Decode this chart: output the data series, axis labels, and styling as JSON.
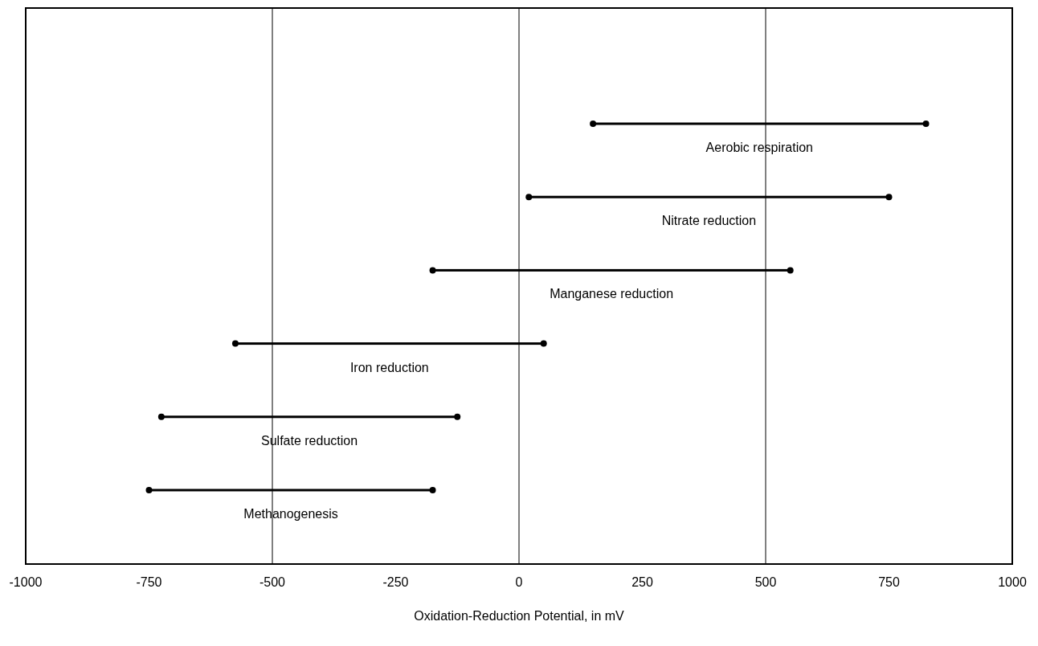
{
  "chart_data": {
    "type": "bar",
    "orientation": "horizontal",
    "xlabel": "Oxidation-Reduction Potential, in mV",
    "categories": [
      "Aerobic respiration",
      "Nitrate reduction",
      "Manganese reduction",
      "Iron reduction",
      "Sulfate reduction",
      "Methanogenesis"
    ],
    "base": [
      150,
      20,
      -175,
      -575,
      -725,
      -750
    ],
    "values": [
      675,
      730,
      725,
      625,
      600,
      575
    ],
    "color": "#000000",
    "xlim": [
      -1000,
      1000
    ],
    "xticks": [
      -1000,
      -750,
      -500,
      -250,
      0,
      250,
      500,
      750,
      1000
    ],
    "ref_lines": [
      {
        "axis": "x",
        "value": -500,
        "color": "#000000"
      },
      {
        "axis": "x",
        "value": 0,
        "color": "#000000"
      },
      {
        "axis": "x",
        "value": 500,
        "color": "#000000"
      }
    ],
    "marker": "circle",
    "grid": false
  }
}
